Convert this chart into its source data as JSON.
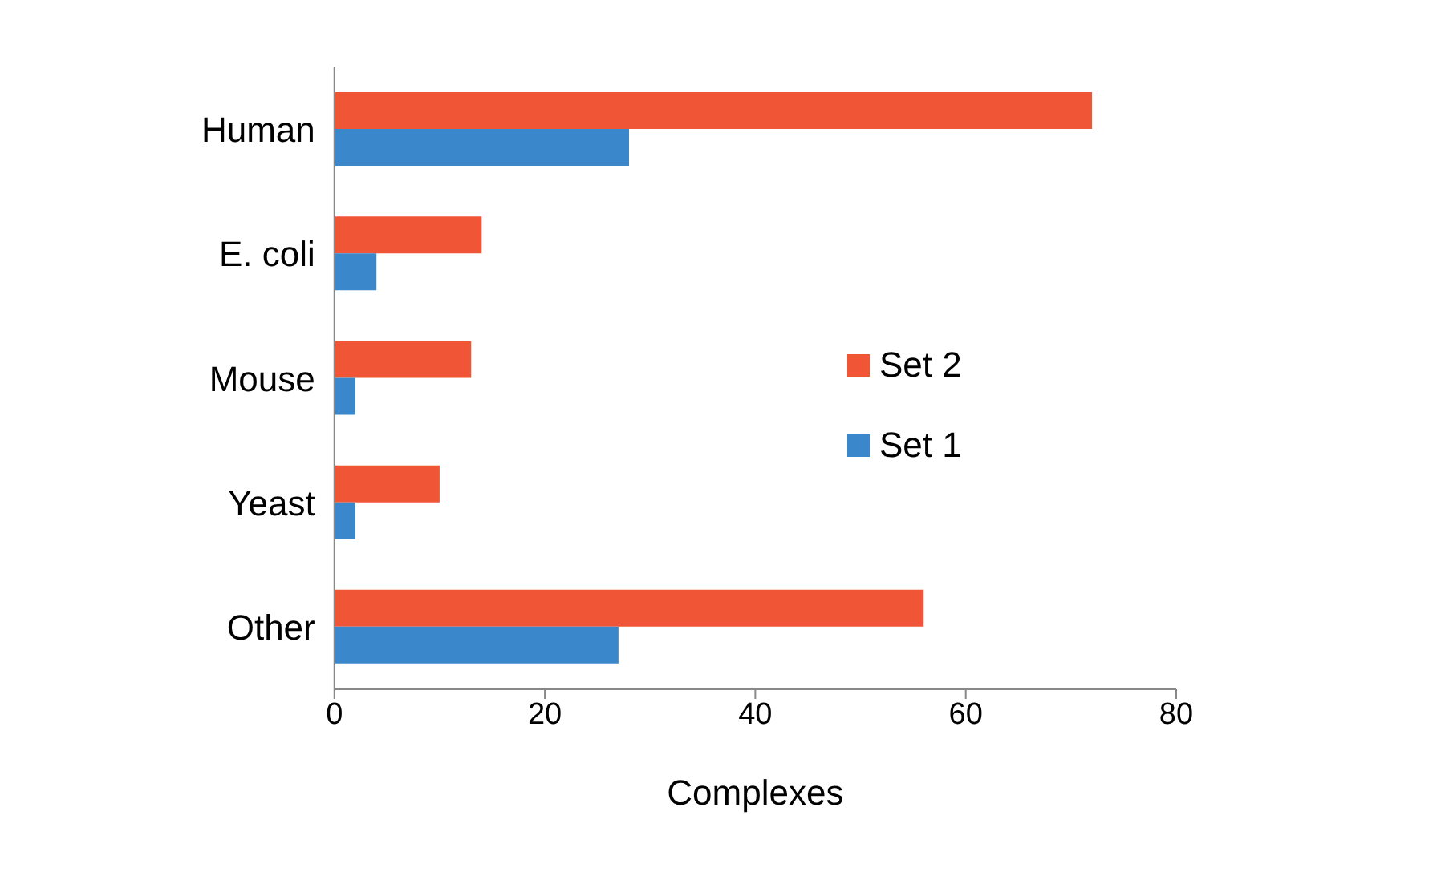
{
  "chart_data": {
    "type": "bar",
    "orientation": "horizontal",
    "xlabel": "Complexes",
    "categories": [
      "Human",
      "E. coli",
      "Mouse",
      "Yeast",
      "Other"
    ],
    "series": [
      {
        "name": "Set 2",
        "color": "#f05535",
        "values": [
          72,
          14,
          13,
          10,
          56
        ]
      },
      {
        "name": "Set 1",
        "color": "#3a87cc",
        "values": [
          28,
          4,
          2,
          2,
          27
        ]
      }
    ],
    "xlim": [
      0,
      80
    ],
    "xticks": [
      0,
      20,
      40,
      60,
      80
    ],
    "grid": false,
    "legend": "right"
  }
}
